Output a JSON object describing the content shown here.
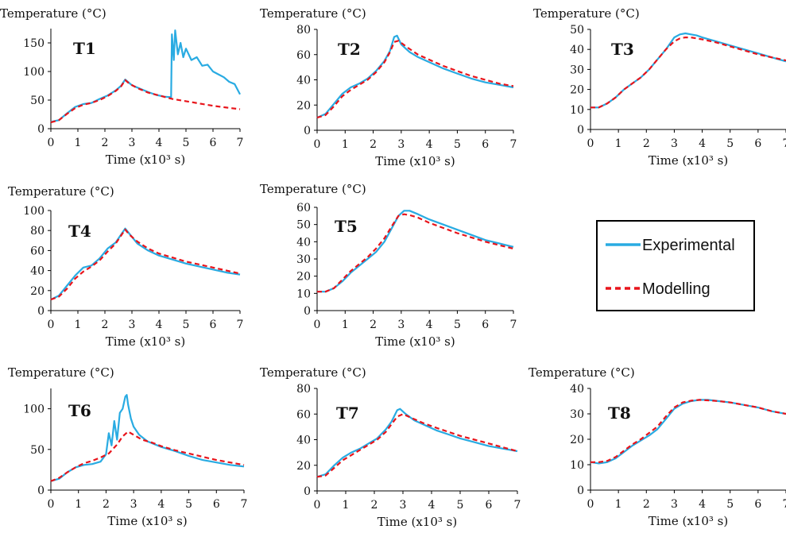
{
  "colors": {
    "experimental": "#29ABE2",
    "modelling": "#E8141B",
    "axis": "#000000",
    "legend_border": "#000000"
  },
  "legend": {
    "placement": "middle-right",
    "experimental_label": "Experimental",
    "modelling_label": "Modelling"
  },
  "chart_data": [
    {
      "type": "line",
      "label": "T1",
      "ylabel": "Temperature (°C)",
      "xlabel": "Time (x10³ s)",
      "xlim": [
        0,
        7
      ],
      "ylim": [
        0,
        175
      ],
      "xticks": [
        0,
        1,
        2,
        3,
        4,
        5,
        6,
        7
      ],
      "yticks": [
        0,
        50,
        100,
        150
      ],
      "series": [
        {
          "name": "Experimental",
          "x": [
            0,
            0.3,
            0.6,
            0.9,
            1.2,
            1.5,
            1.8,
            2.1,
            2.4,
            2.6,
            2.75,
            2.85,
            3.0,
            3.3,
            3.6,
            3.9,
            4.2,
            4.45,
            4.48,
            4.55,
            4.6,
            4.7,
            4.8,
            4.9,
            5.0,
            5.2,
            5.4,
            5.6,
            5.8,
            6.0,
            6.2,
            6.4,
            6.6,
            6.8,
            7.0
          ],
          "values": [
            12,
            15,
            27,
            38,
            43,
            45,
            52,
            58,
            67,
            75,
            86,
            82,
            76,
            70,
            64,
            59,
            56,
            55,
            165,
            120,
            172,
            130,
            150,
            125,
            140,
            120,
            125,
            110,
            112,
            100,
            95,
            90,
            82,
            78,
            60
          ]
        },
        {
          "name": "Modelling",
          "x": [
            0,
            0.3,
            0.6,
            0.9,
            1.2,
            1.5,
            1.8,
            2.1,
            2.4,
            2.6,
            2.75,
            2.9,
            3.2,
            3.6,
            4.0,
            4.5,
            5.0,
            5.5,
            6.0,
            6.5,
            7.0
          ],
          "values": [
            11,
            15,
            26,
            36,
            42,
            45,
            50,
            57,
            66,
            74,
            85,
            79,
            71,
            63,
            58,
            52,
            48,
            44,
            40,
            37,
            34
          ]
        }
      ]
    },
    {
      "type": "line",
      "label": "T2",
      "ylabel": "Temperature (°C)",
      "xlabel": "Time (x10³ s)",
      "xlim": [
        0,
        7
      ],
      "ylim": [
        0,
        80
      ],
      "xticks": [
        0,
        1,
        2,
        3,
        4,
        5,
        6,
        7
      ],
      "yticks": [
        0,
        20,
        40,
        60,
        80
      ],
      "series": [
        {
          "name": "Experimental",
          "x": [
            0,
            0.3,
            0.6,
            0.9,
            1.2,
            1.5,
            1.8,
            2.1,
            2.4,
            2.6,
            2.75,
            2.85,
            3.0,
            3.3,
            3.6,
            4.0,
            4.5,
            5.0,
            5.5,
            6.0,
            6.5,
            7.0
          ],
          "values": [
            10,
            13,
            21,
            29,
            34,
            37,
            41,
            47,
            55,
            63,
            74,
            75,
            68,
            62,
            58,
            54,
            49,
            45,
            41,
            38,
            36,
            34
          ]
        },
        {
          "name": "Modelling",
          "x": [
            0,
            0.3,
            0.6,
            0.9,
            1.2,
            1.5,
            1.8,
            2.1,
            2.4,
            2.6,
            2.75,
            2.9,
            3.2,
            3.6,
            4.0,
            4.5,
            5.0,
            5.5,
            6.0,
            6.5,
            7.0
          ],
          "values": [
            10,
            12,
            19,
            27,
            32,
            36,
            40,
            46,
            54,
            62,
            70,
            71,
            66,
            60,
            56,
            51,
            47,
            43,
            40,
            37,
            35
          ]
        }
      ]
    },
    {
      "type": "line",
      "label": "T3",
      "ylabel": "Temperature (°C)",
      "xlabel": "Time (x10³ s)",
      "xlim": [
        0,
        7
      ],
      "ylim": [
        0,
        50
      ],
      "xticks": [
        0,
        1,
        2,
        3,
        4,
        5,
        6,
        7
      ],
      "yticks": [
        0,
        10,
        20,
        30,
        40,
        50
      ],
      "series": [
        {
          "name": "Experimental",
          "x": [
            0,
            0.3,
            0.6,
            0.9,
            1.2,
            1.5,
            1.8,
            2.1,
            2.4,
            2.7,
            3.0,
            3.2,
            3.4,
            3.6,
            3.8,
            4.0,
            4.5,
            5.0,
            5.5,
            6.0,
            6.5,
            7.0
          ],
          "values": [
            11,
            11,
            13,
            16,
            20,
            23,
            26,
            30,
            35,
            40,
            46,
            47.5,
            48,
            47.5,
            47,
            46,
            44,
            42,
            40,
            38,
            36,
            34
          ]
        },
        {
          "name": "Modelling",
          "x": [
            0,
            0.3,
            0.6,
            0.9,
            1.2,
            1.5,
            1.8,
            2.1,
            2.4,
            2.7,
            3.0,
            3.2,
            3.4,
            3.6,
            4.0,
            4.5,
            5.0,
            5.5,
            6.0,
            6.5,
            7.0
          ],
          "values": [
            11,
            11,
            13,
            16,
            20,
            23,
            26,
            30,
            35,
            40,
            44,
            45.5,
            46,
            46,
            45,
            43.5,
            41.5,
            39.5,
            37.5,
            36,
            34.5
          ]
        }
      ]
    },
    {
      "type": "line",
      "label": "T4",
      "ylabel": "Temperature (°C)",
      "xlabel": "Time (x10³ s)",
      "xlim": [
        0,
        7
      ],
      "ylim": [
        0,
        100
      ],
      "xticks": [
        0,
        1,
        2,
        3,
        4,
        5,
        6,
        7
      ],
      "yticks": [
        0,
        20,
        40,
        60,
        80,
        100
      ],
      "series": [
        {
          "name": "Experimental",
          "x": [
            0,
            0.3,
            0.6,
            0.9,
            1.2,
            1.5,
            1.8,
            2.1,
            2.4,
            2.6,
            2.75,
            2.9,
            3.2,
            3.6,
            4.0,
            4.5,
            5.0,
            5.5,
            6.0,
            6.5,
            7.0
          ],
          "values": [
            11,
            15,
            25,
            35,
            43,
            45,
            52,
            62,
            68,
            76,
            82,
            77,
            67,
            60,
            55,
            51,
            47,
            44,
            41,
            38,
            36
          ]
        },
        {
          "name": "Modelling",
          "x": [
            0,
            0.3,
            0.6,
            0.9,
            1.2,
            1.5,
            1.8,
            2.1,
            2.4,
            2.6,
            2.75,
            2.9,
            3.2,
            3.6,
            4.0,
            4.5,
            5.0,
            5.5,
            6.0,
            6.5,
            7.0
          ],
          "values": [
            11,
            14,
            22,
            32,
            39,
            44,
            50,
            59,
            67,
            75,
            81,
            76,
            69,
            62,
            57,
            53,
            49,
            46,
            43,
            40,
            37
          ]
        }
      ]
    },
    {
      "type": "line",
      "label": "T5",
      "ylabel": "Temperature (°C)",
      "xlabel": "Time (x10³ s)",
      "xlim": [
        0,
        7
      ],
      "ylim": [
        0,
        60
      ],
      "xticks": [
        0,
        1,
        2,
        3,
        4,
        5,
        6,
        7
      ],
      "yticks": [
        0,
        10,
        20,
        30,
        40,
        50,
        60
      ],
      "series": [
        {
          "name": "Experimental",
          "x": [
            0,
            0.3,
            0.6,
            0.9,
            1.2,
            1.5,
            1.8,
            2.1,
            2.4,
            2.7,
            2.9,
            3.1,
            3.3,
            3.6,
            4.0,
            4.5,
            5.0,
            5.5,
            6.0,
            6.5,
            7.0
          ],
          "values": [
            11,
            11,
            13,
            17,
            22,
            26,
            30,
            34,
            40,
            49,
            55,
            58,
            58,
            56,
            53,
            50,
            47,
            44,
            41,
            39,
            37
          ]
        },
        {
          "name": "Modelling",
          "x": [
            0,
            0.3,
            0.6,
            0.9,
            1.2,
            1.5,
            1.8,
            2.1,
            2.4,
            2.7,
            2.9,
            3.1,
            3.3,
            3.6,
            4.0,
            4.5,
            5.0,
            5.5,
            6.0,
            6.5,
            7.0
          ],
          "values": [
            11,
            11,
            13,
            18,
            23,
            27,
            31,
            36,
            42,
            50,
            55,
            56,
            55.5,
            54,
            51,
            48,
            45,
            42.5,
            40,
            38,
            36
          ]
        }
      ]
    },
    {
      "type": "line",
      "label": "T6",
      "ylabel": "Temperature (°C)",
      "xlabel": "Time (x10³ s)",
      "xlim": [
        0,
        7
      ],
      "ylim": [
        0,
        125
      ],
      "xticks": [
        0,
        1,
        2,
        3,
        4,
        5,
        6,
        7
      ],
      "yticks": [
        0,
        50,
        100
      ],
      "series": [
        {
          "name": "Experimental",
          "x": [
            0,
            0.3,
            0.6,
            0.9,
            1.2,
            1.5,
            1.8,
            2.0,
            2.1,
            2.2,
            2.3,
            2.4,
            2.5,
            2.6,
            2.7,
            2.75,
            2.8,
            2.9,
            3.0,
            3.2,
            3.5,
            4.0,
            4.5,
            5.0,
            5.5,
            6.0,
            6.5,
            7.0
          ],
          "values": [
            11,
            14,
            22,
            28,
            31,
            32,
            35,
            44,
            70,
            55,
            85,
            62,
            95,
            100,
            115,
            117,
            105,
            88,
            78,
            68,
            60,
            53,
            48,
            42,
            37,
            34,
            31,
            29
          ]
        },
        {
          "name": "Modelling",
          "x": [
            0,
            0.3,
            0.6,
            0.9,
            1.2,
            1.5,
            1.8,
            2.1,
            2.4,
            2.6,
            2.8,
            3.0,
            3.3,
            3.7,
            4.0,
            4.5,
            5.0,
            5.5,
            6.0,
            6.5,
            7.0
          ],
          "values": [
            11,
            15,
            22,
            28,
            33,
            36,
            40,
            45,
            56,
            66,
            72,
            68,
            62,
            58,
            54,
            49,
            45,
            41,
            37,
            34,
            31
          ]
        }
      ]
    },
    {
      "type": "line",
      "label": "T7",
      "ylabel": "Temperature (°C)",
      "xlabel": "Time (x10³ s)",
      "xlim": [
        0,
        7
      ],
      "ylim": [
        0,
        80
      ],
      "xticks": [
        0,
        1,
        2,
        3,
        4,
        5,
        6,
        7
      ],
      "yticks": [
        0,
        20,
        40,
        60,
        80
      ],
      "series": [
        {
          "name": "Experimental",
          "x": [
            0,
            0.3,
            0.6,
            0.9,
            1.2,
            1.5,
            1.8,
            2.1,
            2.4,
            2.6,
            2.8,
            2.9,
            3.1,
            3.4,
            3.8,
            4.2,
            4.6,
            5.0,
            5.5,
            6.0,
            6.5,
            7.0
          ],
          "values": [
            11,
            13,
            20,
            26,
            30,
            33,
            37,
            41,
            48,
            54,
            63,
            64,
            60,
            55,
            51,
            47,
            44,
            41,
            38,
            35,
            33,
            31
          ]
        },
        {
          "name": "Modelling",
          "x": [
            0,
            0.3,
            0.6,
            0.9,
            1.2,
            1.5,
            1.8,
            2.1,
            2.4,
            2.6,
            2.8,
            3.0,
            3.3,
            3.7,
            4.2,
            4.6,
            5.0,
            5.5,
            6.0,
            6.5,
            7.0
          ],
          "values": [
            11,
            12,
            18,
            24,
            28,
            32,
            36,
            40,
            46,
            52,
            58,
            60,
            57,
            53,
            49,
            46,
            43,
            40,
            37,
            34,
            31
          ]
        }
      ]
    },
    {
      "type": "line",
      "label": "T8",
      "ylabel": "Temperature (°C)",
      "xlabel": "Time (x10³ s)",
      "xlim": [
        0,
        7
      ],
      "ylim": [
        0,
        40
      ],
      "xticks": [
        0,
        1,
        2,
        3,
        4,
        5,
        6,
        7
      ],
      "yticks": [
        0,
        10,
        20,
        30,
        40
      ],
      "series": [
        {
          "name": "Experimental",
          "x": [
            0,
            0.3,
            0.6,
            0.9,
            1.2,
            1.5,
            1.8,
            2.1,
            2.4,
            2.7,
            3.0,
            3.3,
            3.6,
            3.9,
            4.2,
            4.6,
            5.0,
            5.5,
            6.0,
            6.5,
            7.0
          ],
          "values": [
            11,
            10.5,
            11,
            12.5,
            15,
            17.5,
            19.5,
            21.5,
            24,
            28,
            32,
            34,
            35,
            35.5,
            35.5,
            35,
            34.5,
            33.5,
            32.5,
            31,
            30
          ]
        },
        {
          "name": "Modelling",
          "x": [
            0,
            0.3,
            0.6,
            0.9,
            1.2,
            1.5,
            1.8,
            2.1,
            2.4,
            2.7,
            3.0,
            3.3,
            3.6,
            3.9,
            4.2,
            4.6,
            5.0,
            5.5,
            6.0,
            6.5,
            7.0
          ],
          "values": [
            11,
            11,
            11.5,
            13,
            15.5,
            18,
            20,
            22.5,
            25,
            29,
            32.5,
            34.5,
            35.2,
            35.5,
            35.3,
            35,
            34.5,
            33.5,
            32.5,
            31,
            30
          ]
        }
      ]
    }
  ]
}
